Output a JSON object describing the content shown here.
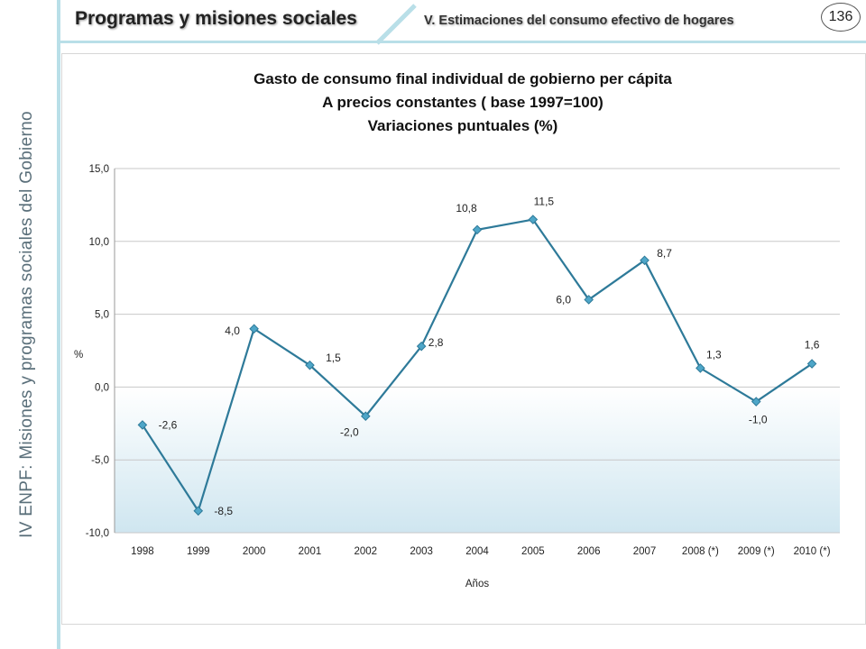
{
  "sidebar": {
    "lead": "IV ENPF:",
    "text": "Misiones y programas sociales del Gobierno"
  },
  "header": {
    "title": "Programas y misiones sociales",
    "subtitle": "V. Estimaciones del consumo efectivo de hogares",
    "page_number": "136"
  },
  "colors": {
    "line": "#2e7a99",
    "marker": "#4ea6c8",
    "accent_rule": "#b9dfe8",
    "negative_fill_top": "#ffffff",
    "negative_fill_bottom": "#cfe6f0"
  },
  "chart_data": {
    "type": "line",
    "title_lines": [
      "Gasto de consumo final individual de gobierno per cápita",
      "A precios constantes ( base 1997=100)",
      "Variaciones puntuales (%)"
    ],
    "xlabel": "Años",
    "ylabel": "%",
    "categories": [
      "1998",
      "1999",
      "2000",
      "2001",
      "2002",
      "2003",
      "2004",
      "2005",
      "2006",
      "2007",
      "2008 (*)",
      "2009 (*)",
      "2010 (*)"
    ],
    "series": [
      {
        "values": [
          -2.6,
          -8.5,
          4.0,
          1.5,
          -2.0,
          2.8,
          10.8,
          11.5,
          6.0,
          8.7,
          1.3,
          -1.0,
          1.6
        ]
      }
    ],
    "data_labels": [
      "-2,6",
      "-8,5",
      "4,0",
      "1,5",
      "-2,0",
      "2,8",
      "10,8",
      "11,5",
      "6,0",
      "8,7",
      "1,3",
      "-1,0",
      "1,6"
    ],
    "y_ticks": [
      15.0,
      10.0,
      5.0,
      0.0,
      -5.0,
      -10.0
    ],
    "y_tick_labels": [
      "15,0",
      "10,0",
      "5,0",
      "0,0",
      "-5,0",
      "-10,0"
    ],
    "ylim": [
      -10,
      15
    ],
    "grid": true,
    "legend": "none"
  }
}
